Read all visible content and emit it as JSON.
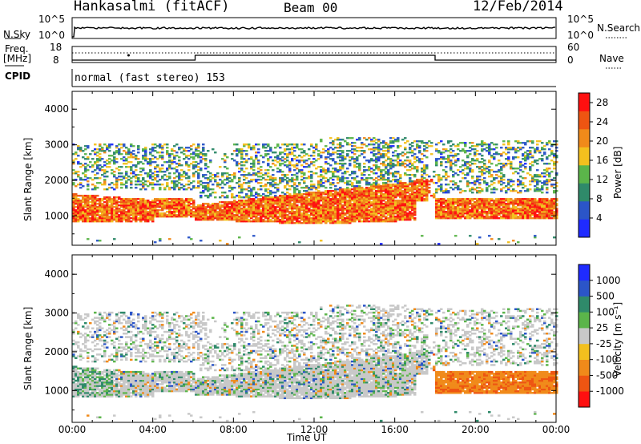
{
  "header": {
    "site": "Hankasalmi (fitACF)",
    "beam": "Beam 00",
    "date": "12/Feb/2014"
  },
  "top_panels": {
    "nsky_label": "N.Sky",
    "nsky_ticks": [
      "10^5",
      "10^0"
    ],
    "nsearch_label": "N.Search",
    "nsearch_ticks": [
      "10^5",
      "10^0"
    ],
    "freq_label_1": "Freq.",
    "freq_label_2": "[MHz]",
    "freq_ticks": [
      "18",
      "8"
    ],
    "nave_label": "Nave",
    "nave_ticks": [
      "60",
      "0"
    ],
    "cpid_label": "CPID",
    "cpid_text": "normal (fast stereo) 153"
  },
  "chart_data": [
    {
      "type": "heatmap",
      "name": "power",
      "ylabel": "Slant Range [km]",
      "ylim": [
        180,
        4500
      ],
      "yticks": [
        "4000",
        "3000",
        "2000",
        "1000"
      ],
      "xlim_hours": [
        0,
        24
      ],
      "colorbar_label": "Power [dB]",
      "colorbar_ticks": [
        "28",
        "24",
        "20",
        "16",
        "12",
        "8",
        "4"
      ],
      "colorbar_range": [
        0,
        30
      ],
      "colors": [
        "#1f2bff",
        "#2b55c8",
        "#2f8a6a",
        "#5bb54a",
        "#f3c01e",
        "#f08a1a",
        "#ee5512",
        "#ff1010"
      ]
    },
    {
      "type": "heatmap",
      "name": "velocity",
      "ylabel": "Slant Range [km]",
      "ylim": [
        180,
        4500
      ],
      "yticks": [
        "4000",
        "3000",
        "2000",
        "1000"
      ],
      "xlim_hours": [
        0,
        24
      ],
      "xticks": [
        "00:00",
        "04:00",
        "08:00",
        "12:00",
        "16:00",
        "20:00",
        "00:00"
      ],
      "xlabel": "Time UT",
      "colorbar_label": "Velocity [m s⁻¹]",
      "colorbar_ticks": [
        "1000",
        "500",
        "100",
        "25",
        "-25",
        "-100",
        "-500",
        "-1000"
      ],
      "colors": [
        "#1f2bff",
        "#2b55c8",
        "#2f8a6a",
        "#5bb54a",
        "#c8c8c8",
        "#f3c01e",
        "#f08a1a",
        "#ee5512",
        "#ff1010"
      ]
    }
  ]
}
